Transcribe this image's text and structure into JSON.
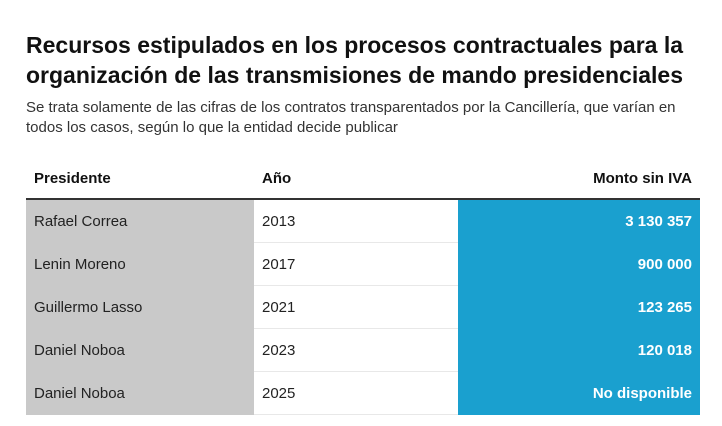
{
  "title": "Recursos estipulados en los procesos contractuales para la organización de las transmisiones de mando presidenciales",
  "subtitle": "Se trata solamente de las cifras de los contratos transparentados por la Cancillería, que varían en todos los casos, según lo que la entidad decide publicar",
  "colors": {
    "president_column": "#c9c9c9",
    "amount_column": "#1aa0cf",
    "amount_text": "#ffffff"
  },
  "chart_data": {
    "type": "table",
    "columns": [
      "Presidente",
      "Año",
      "Monto sin IVA"
    ],
    "rows": [
      {
        "presidente": "Rafael Correa",
        "anio": "2013",
        "monto": "3 130 357"
      },
      {
        "presidente": "Lenin Moreno",
        "anio": "2017",
        "monto": "900 000"
      },
      {
        "presidente": "Guillermo Lasso",
        "anio": "2021",
        "monto": "123 265"
      },
      {
        "presidente": "Daniel Noboa",
        "anio": "2023",
        "monto": "120 018"
      },
      {
        "presidente": "Daniel Noboa",
        "anio": "2025",
        "monto": "No disponible"
      }
    ]
  }
}
